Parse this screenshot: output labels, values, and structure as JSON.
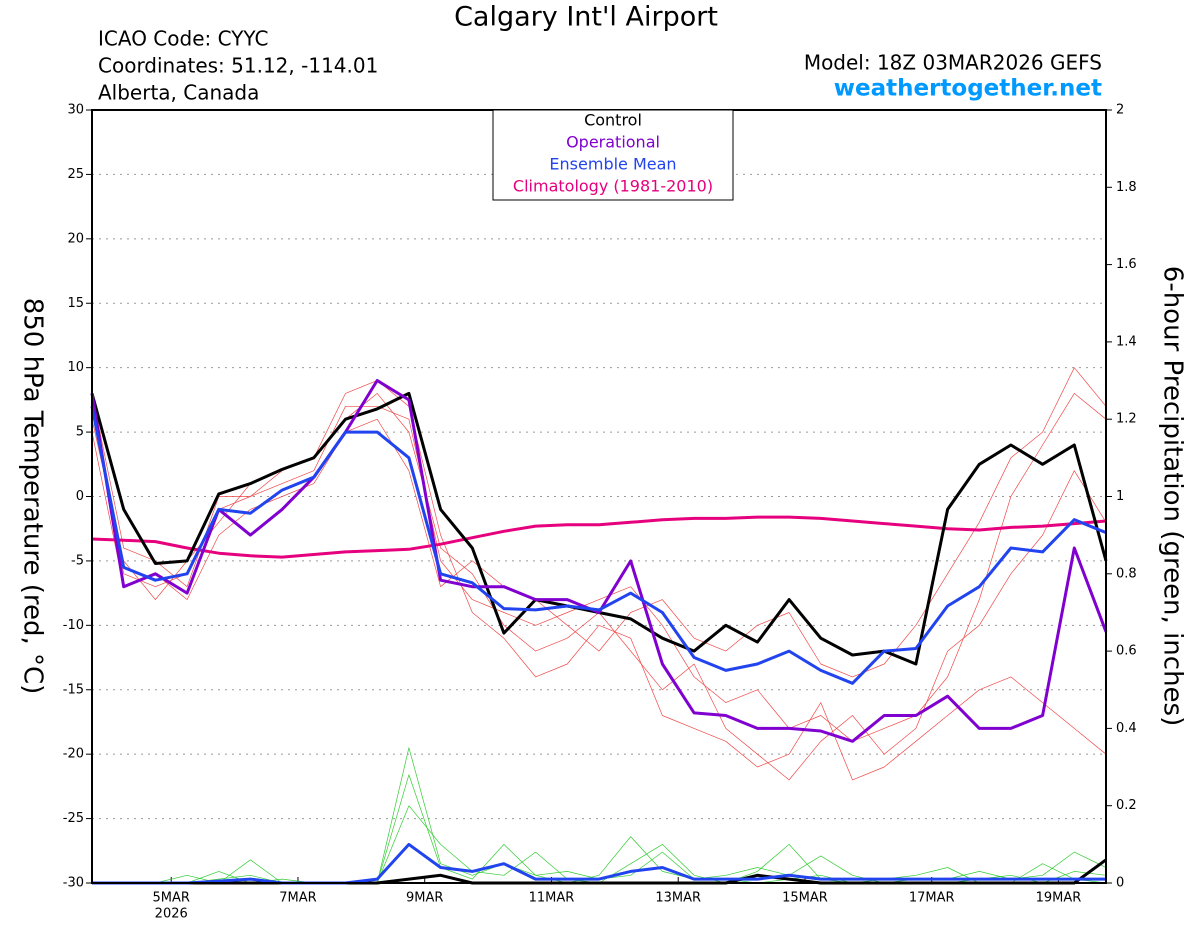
{
  "chart_data": {
    "type": "line",
    "title": "Calgary Int'l Airport",
    "info_lines": [
      "ICAO Code: CYYC",
      "Coordinates: 51.12, -114.01",
      "Alberta, Canada"
    ],
    "model": "Model: 18Z 03MAR2026 GEFS",
    "website": "weathertogether.net",
    "ylabel": "850 hPa Temperature (red, °C)",
    "y2label": "6-hour Precipitation (green, inches)",
    "x_year_label": "2026",
    "grid": true,
    "legend": "top",
    "x": [
      3.75,
      4.25,
      4.75,
      5.25,
      5.75,
      6.25,
      6.75,
      7.25,
      7.75,
      8.25,
      8.75,
      9.25,
      9.75,
      10.25,
      10.75,
      11.25,
      11.75,
      12.25,
      12.75,
      13.25,
      13.75,
      14.25,
      14.75,
      15.25,
      15.75,
      16.25,
      16.75,
      17.25,
      17.75,
      18.25,
      18.75,
      19.25,
      19.75
    ],
    "xlim": [
      3.75,
      19.75
    ],
    "xticks": [
      {
        "value": 5,
        "label": "5MAR"
      },
      {
        "value": 7,
        "label": "7MAR"
      },
      {
        "value": 9,
        "label": "9MAR"
      },
      {
        "value": 11,
        "label": "11MAR"
      },
      {
        "value": 13,
        "label": "13MAR"
      },
      {
        "value": 15,
        "label": "15MAR"
      },
      {
        "value": 17,
        "label": "17MAR"
      },
      {
        "value": 19,
        "label": "19MAR"
      }
    ],
    "ylim": [
      -30,
      30
    ],
    "yticks": [
      -30,
      -25,
      -20,
      -15,
      -10,
      -5,
      0,
      5,
      10,
      15,
      20,
      25,
      30
    ],
    "y2lim": [
      0,
      2
    ],
    "y2ticks": [
      0,
      0.2,
      0.4,
      0.6,
      0.8,
      1,
      1.2,
      1.4,
      1.6,
      1.8,
      2
    ],
    "series": [
      {
        "color": "#f04a4a",
        "linewidth": 0.7,
        "values": [
          7,
          -6,
          -7,
          -6,
          -1,
          0,
          1,
          2,
          7,
          7,
          6,
          -5,
          -8,
          -9,
          -10,
          -9,
          -8,
          -7,
          -10,
          -14,
          -16,
          -15,
          -18,
          -17,
          -19,
          -18,
          -17,
          -14,
          -8,
          0,
          4,
          8,
          6
        ]
      },
      {
        "color": "#f04a4a",
        "linewidth": 0.7,
        "values": [
          6,
          -5,
          -8,
          -5,
          -2,
          1,
          2,
          3,
          6,
          8,
          5,
          -4,
          -6,
          -10,
          -12,
          -11,
          -9,
          -12,
          -15,
          -13,
          -18,
          -20,
          -22,
          -19,
          -17,
          -20,
          -18,
          -12,
          -10,
          -6,
          -3,
          2,
          -2
        ]
      },
      {
        "color": "#f04a4a",
        "linewidth": 0.7,
        "values": [
          5,
          -7,
          -6,
          -8,
          -3,
          -1,
          0,
          1,
          5,
          6,
          2,
          -7,
          -5,
          -7,
          -8,
          -10,
          -12,
          -9,
          -8,
          -11,
          -12,
          -10,
          -9,
          -13,
          -14,
          -13,
          -10,
          -6,
          -2,
          3,
          5,
          10,
          7
        ]
      },
      {
        "color": "#f04a4a",
        "linewidth": 0.7,
        "values": [
          8,
          -4,
          -5,
          -7,
          0,
          0,
          2,
          3,
          8,
          9,
          7,
          -3,
          -9,
          -11,
          -14,
          -13,
          -10,
          -11,
          -17,
          -18,
          -19,
          -21,
          -20,
          -16,
          -22,
          -21,
          -19,
          -17,
          -15,
          -14,
          -16,
          -18,
          -20
        ]
      },
      {
        "color": "#33cc33",
        "linewidth": 0.7,
        "axis": "y2",
        "values": [
          0,
          0,
          0,
          0,
          0.01,
          0.02,
          0,
          0,
          0,
          0,
          0.35,
          0.05,
          0.02,
          0.05,
          0.02,
          0,
          0.02,
          0.12,
          0.03,
          0.01,
          0.01,
          0,
          0.01,
          0.02,
          0,
          0,
          0,
          0,
          0.01,
          0.02,
          0,
          0.03,
          0.02
        ]
      },
      {
        "color": "#33cc33",
        "linewidth": 0.7,
        "axis": "y2",
        "values": [
          0,
          0,
          0,
          0.02,
          0,
          0.06,
          0,
          0,
          0,
          0,
          0.2,
          0.1,
          0.03,
          0.02,
          0.08,
          0.01,
          0,
          0.05,
          0.1,
          0.02,
          0,
          0.03,
          0.1,
          0.01,
          0,
          0.01,
          0.02,
          0.04,
          0,
          0,
          0.05,
          0.01,
          0
        ]
      },
      {
        "color": "#33cc33",
        "linewidth": 0.7,
        "axis": "y2",
        "values": [
          0,
          0,
          0,
          0,
          0.03,
          0,
          0.01,
          0,
          0,
          0,
          0.28,
          0.04,
          0.01,
          0.1,
          0.02,
          0.03,
          0.01,
          0.02,
          0.08,
          0.01,
          0.02,
          0.04,
          0.02,
          0.07,
          0.02,
          0,
          0.01,
          0.01,
          0.03,
          0.01,
          0.02,
          0.08,
          0.04
        ]
      },
      {
        "name": "Climatology (1981-2010)",
        "color": "#e6007e",
        "linewidth": 3,
        "values": [
          -3.3,
          -3.4,
          -3.5,
          -4.0,
          -4.4,
          -4.6,
          -4.7,
          -4.5,
          -4.3,
          -4.2,
          -4.1,
          -3.7,
          -3.2,
          -2.7,
          -2.3,
          -2.2,
          -2.2,
          -2.0,
          -1.8,
          -1.7,
          -1.7,
          -1.6,
          -1.6,
          -1.7,
          -1.9,
          -2.1,
          -2.3,
          -2.5,
          -2.6,
          -2.4,
          -2.3,
          -2.1,
          -1.9
        ]
      },
      {
        "name": "Control",
        "color": "#000000",
        "linewidth": 3,
        "values": [
          8,
          -1,
          -5.2,
          -5,
          0.2,
          1,
          2.1,
          3,
          6,
          6.8,
          8,
          -1,
          -4,
          -10.6,
          -8,
          -8.5,
          -9,
          -9.5,
          -11,
          -12,
          -10,
          -11.3,
          -8,
          -11,
          -12.3,
          -12,
          -13,
          -1,
          2.5,
          4,
          2.5,
          4,
          -5
        ]
      },
      {
        "name": "Operational",
        "color": "#8000d0",
        "linewidth": 3,
        "values": [
          8,
          -7,
          -6,
          -7.5,
          -1,
          -3,
          -1,
          1.5,
          5,
          9,
          7.5,
          -6.5,
          -7,
          -7,
          -8,
          -8,
          -9,
          -5,
          -13,
          -16.8,
          -17,
          -18,
          -18,
          -18.2,
          -19,
          -17,
          -17,
          -15.5,
          -18,
          -18,
          -17,
          -4,
          -10.5
        ]
      },
      {
        "name": "Ensemble Mean",
        "color": "#2244ee",
        "linewidth": 3,
        "values": [
          7,
          -5.5,
          -6.5,
          -6,
          -1,
          -1.3,
          0.5,
          1.5,
          5,
          5,
          3,
          -6,
          -6.7,
          -8.7,
          -8.8,
          -8.5,
          -8.8,
          -7.5,
          -9,
          -12.5,
          -13.5,
          -13,
          -12,
          -13.5,
          -14.5,
          -12,
          -11.8,
          -8.5,
          -7,
          -4,
          -4.3,
          -1.8,
          -2.8
        ]
      },
      {
        "color": "#000000",
        "linewidth": 3,
        "axis": "y2",
        "values": [
          0,
          0,
          0,
          0,
          0,
          0,
          0,
          0,
          0,
          0,
          0.01,
          0.02,
          0,
          0,
          0,
          0,
          0,
          0,
          0,
          0,
          0,
          0.02,
          0.01,
          0,
          0,
          0,
          0,
          0,
          0,
          0,
          0,
          0,
          0.06
        ]
      },
      {
        "color": "#2244ee",
        "linewidth": 3,
        "axis": "y2",
        "values": [
          0,
          0,
          0,
          0,
          0.005,
          0.01,
          0,
          0,
          0,
          0.01,
          0.1,
          0.04,
          0.03,
          0.05,
          0.01,
          0.01,
          0.01,
          0.03,
          0.04,
          0.01,
          0.01,
          0.01,
          0.02,
          0.01,
          0.01,
          0.01,
          0.01,
          0.01,
          0.01,
          0.01,
          0.01,
          0.01,
          0.01
        ]
      }
    ]
  }
}
